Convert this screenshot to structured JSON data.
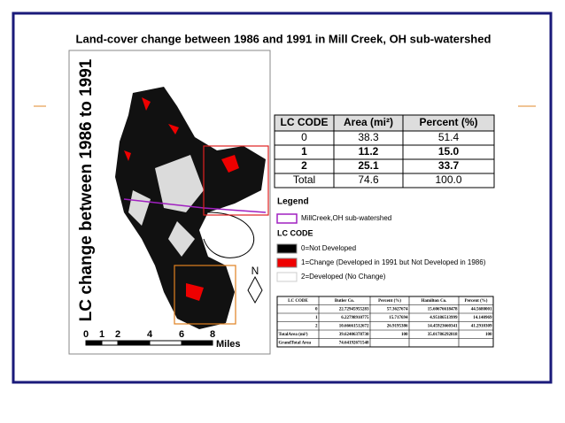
{
  "title": "Land-cover change between 1986 and 1991 in Mill Creek, OH sub-watershed",
  "vertical_label": "LC change between 1986 to 1991",
  "summary_table": {
    "header": [
      "LC CODE",
      "Area (mi²)",
      "Percent (%)"
    ],
    "rows": [
      [
        "0",
        "38.3",
        "51.4"
      ],
      [
        "1",
        "11.2",
        "15.0"
      ],
      [
        "2",
        "25.1",
        "33.7"
      ],
      [
        "Total",
        "74.6",
        "100.0"
      ]
    ]
  },
  "legend": {
    "title": "Legend",
    "watershed": "MillCreek,OH sub-watershed",
    "subtitle": "LC CODE",
    "items": [
      "0=Not Developed",
      "1=Change (Developed in 1991 but Not Developed in 1986)",
      "2=Developed (No Change)"
    ]
  },
  "county_table": {
    "header": [
      "LC CODE",
      "Butler Co.",
      "Percent (%)",
      "Hamilton Co.",
      "Percent (%)"
    ],
    "rows": [
      [
        "0",
        "22.72945955283",
        "57.3627674",
        "15.60676618478",
        "44.5680001"
      ],
      [
        "1",
        "6.22798910775",
        "15.717694",
        "4.95186513999",
        "14.140969"
      ],
      [
        "2",
        "10.66661512672",
        "26.9195386",
        "14.45923660341",
        "41.2910309"
      ],
      [
        "TotalArea (mi²)",
        "39.62406378730",
        "100",
        "35.01786292818",
        "100"
      ],
      [
        "GrandTotal Area",
        "74.64192671548"
      ]
    ]
  },
  "scale_bar": {
    "labels": [
      "0",
      "1",
      "2",
      "4",
      "6",
      "8"
    ],
    "unit": "Miles"
  },
  "north": "N"
}
